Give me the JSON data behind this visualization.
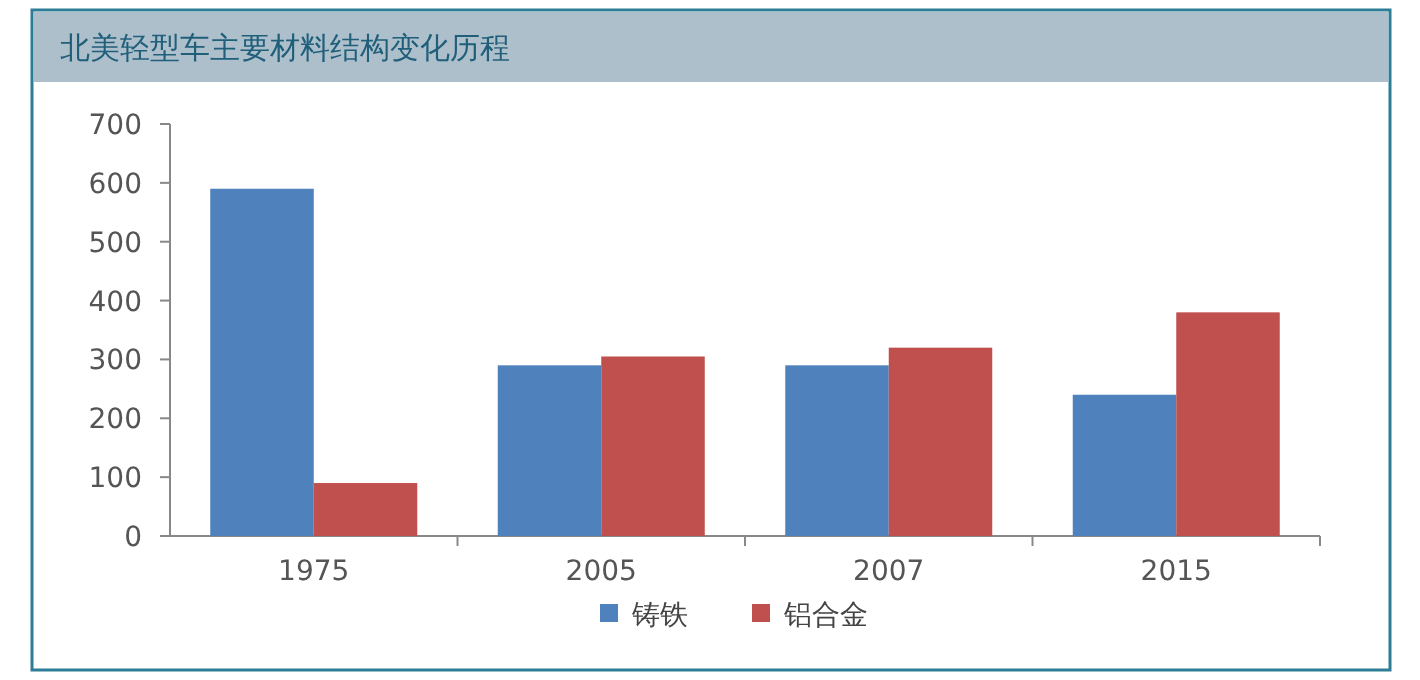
{
  "chart_data": {
    "type": "bar",
    "title": "北美轻型车主要材料结构变化历程",
    "categories": [
      "1975",
      "2005",
      "2007",
      "2015"
    ],
    "series": [
      {
        "name": "铸铁",
        "color": "#4f81bd",
        "values": [
          590,
          290,
          290,
          240
        ]
      },
      {
        "name": "铝合金",
        "color": "#c0504d",
        "values": [
          90,
          305,
          320,
          380
        ]
      }
    ],
    "ylim": [
      0,
      700
    ],
    "yticks": [
      0,
      100,
      200,
      300,
      400,
      500,
      600,
      700
    ],
    "legend": "bottom"
  }
}
